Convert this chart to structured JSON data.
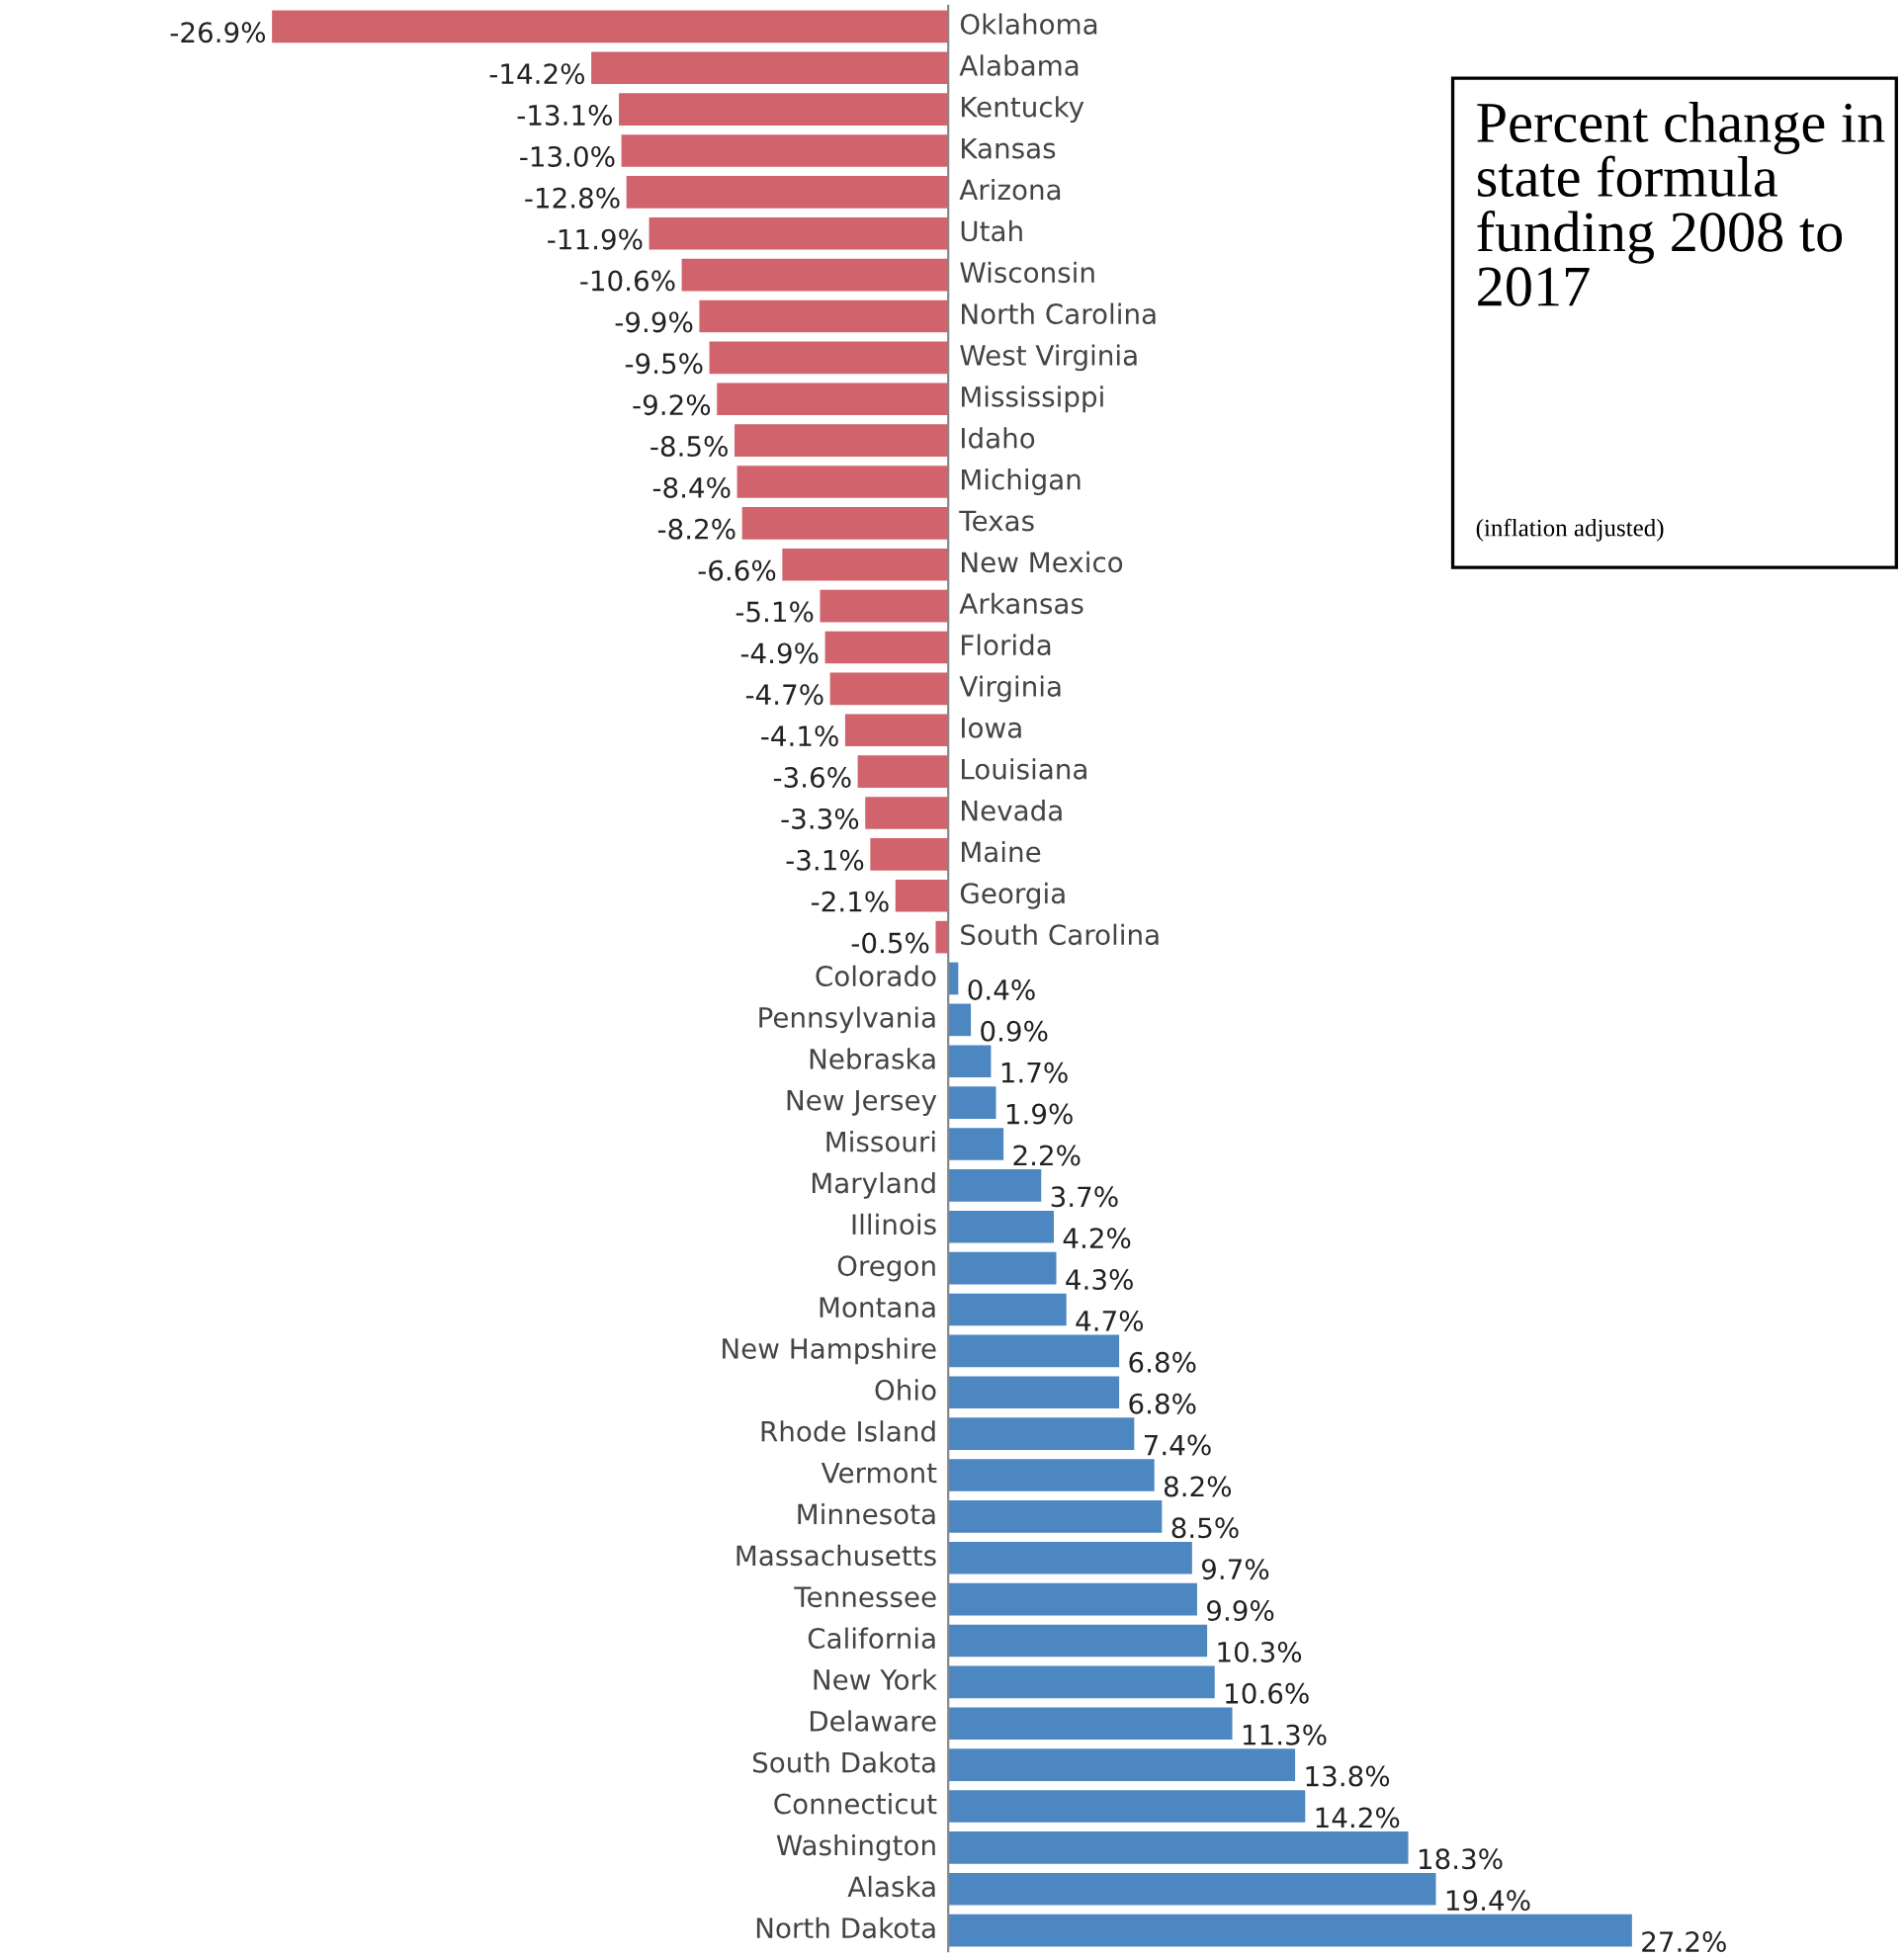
{
  "chart_data": {
    "type": "bar",
    "orientation": "horizontal",
    "title": "Percent change in state formula funding 2008 to 2017",
    "subtitle": "(inflation adjusted)",
    "categories": [
      "Oklahoma",
      "Alabama",
      "Kentucky",
      "Kansas",
      "Arizona",
      "Utah",
      "Wisconsin",
      "North Carolina",
      "West Virginia",
      "Mississippi",
      "Idaho",
      "Michigan",
      "Texas",
      "New Mexico",
      "Arkansas",
      "Florida",
      "Virginia",
      "Iowa",
      "Louisiana",
      "Nevada",
      "Maine",
      "Georgia",
      "South Carolina",
      "Colorado",
      "Pennsylvania",
      "Nebraska",
      "New Jersey",
      "Missouri",
      "Maryland",
      "Illinois",
      "Oregon",
      "Montana",
      "New Hampshire",
      "Ohio",
      "Rhode Island",
      "Vermont",
      "Minnesota",
      "Massachusetts",
      "Tennessee",
      "California",
      "New York",
      "Delaware",
      "South Dakota",
      "Connecticut",
      "Washington",
      "Alaska",
      "North Dakota"
    ],
    "values": [
      -26.9,
      -14.2,
      -13.1,
      -13.0,
      -12.8,
      -11.9,
      -10.6,
      -9.9,
      -9.5,
      -9.2,
      -8.5,
      -8.4,
      -8.2,
      -6.6,
      -5.1,
      -4.9,
      -4.7,
      -4.1,
      -3.6,
      -3.3,
      -3.1,
      -2.1,
      -0.5,
      0.4,
      0.9,
      1.7,
      1.9,
      2.2,
      3.7,
      4.2,
      4.3,
      4.7,
      6.8,
      6.8,
      7.4,
      8.2,
      8.5,
      9.7,
      9.9,
      10.3,
      10.6,
      11.3,
      13.8,
      14.2,
      18.3,
      19.4,
      27.2
    ],
    "value_labels": [
      "-26.9%",
      "-14.2%",
      "-13.1%",
      "-13.0%",
      "-12.8%",
      "-11.9%",
      "-10.6%",
      "-9.9%",
      "-9.5%",
      "-9.2%",
      "-8.5%",
      "-8.4%",
      "-8.2%",
      "-6.6%",
      "-5.1%",
      "-4.9%",
      "-4.7%",
      "-4.1%",
      "-3.6%",
      "-3.3%",
      "-3.1%",
      "-2.1%",
      "-0.5%",
      "0.4%",
      "0.9%",
      "1.7%",
      "1.9%",
      "2.2%",
      "3.7%",
      "4.2%",
      "4.3%",
      "4.7%",
      "6.8%",
      "6.8%",
      "7.4%",
      "8.2%",
      "8.5%",
      "9.7%",
      "9.9%",
      "10.3%",
      "10.6%",
      "11.3%",
      "13.8%",
      "14.2%",
      "18.3%",
      "19.4%",
      "27.2%"
    ],
    "colors": [
      "#d0636b",
      "#d0636b",
      "#d0636b",
      "#d0636b",
      "#d0636b",
      "#d0636b",
      "#d0636b",
      "#d0636b",
      "#d0636b",
      "#d0636b",
      "#d0636b",
      "#d0636b",
      "#d0636b",
      "#d0636b",
      "#d0636b",
      "#d0636b",
      "#d0636b",
      "#d0636b",
      "#d0636b",
      "#d0636b",
      "#d0636b",
      "#d0636b",
      "#d0636b",
      "#4d87c1",
      "#4d87c1",
      "#4d87c1",
      "#4d87c1",
      "#4d87c1",
      "#4d87c1",
      "#4d87c1",
      "#4d87c1",
      "#4d87c1",
      "#4d87c1",
      "#4d87c1",
      "#4d87c1",
      "#4d87c1",
      "#4d87c1",
      "#4d87c1",
      "#4d87c1",
      "#4d87c1",
      "#4d87c1",
      "#4d87c1",
      "#4d87c1",
      "#4d87c1",
      "#4d87c1",
      "#4d87c1",
      "#4d87c1"
    ],
    "legend": false
  }
}
